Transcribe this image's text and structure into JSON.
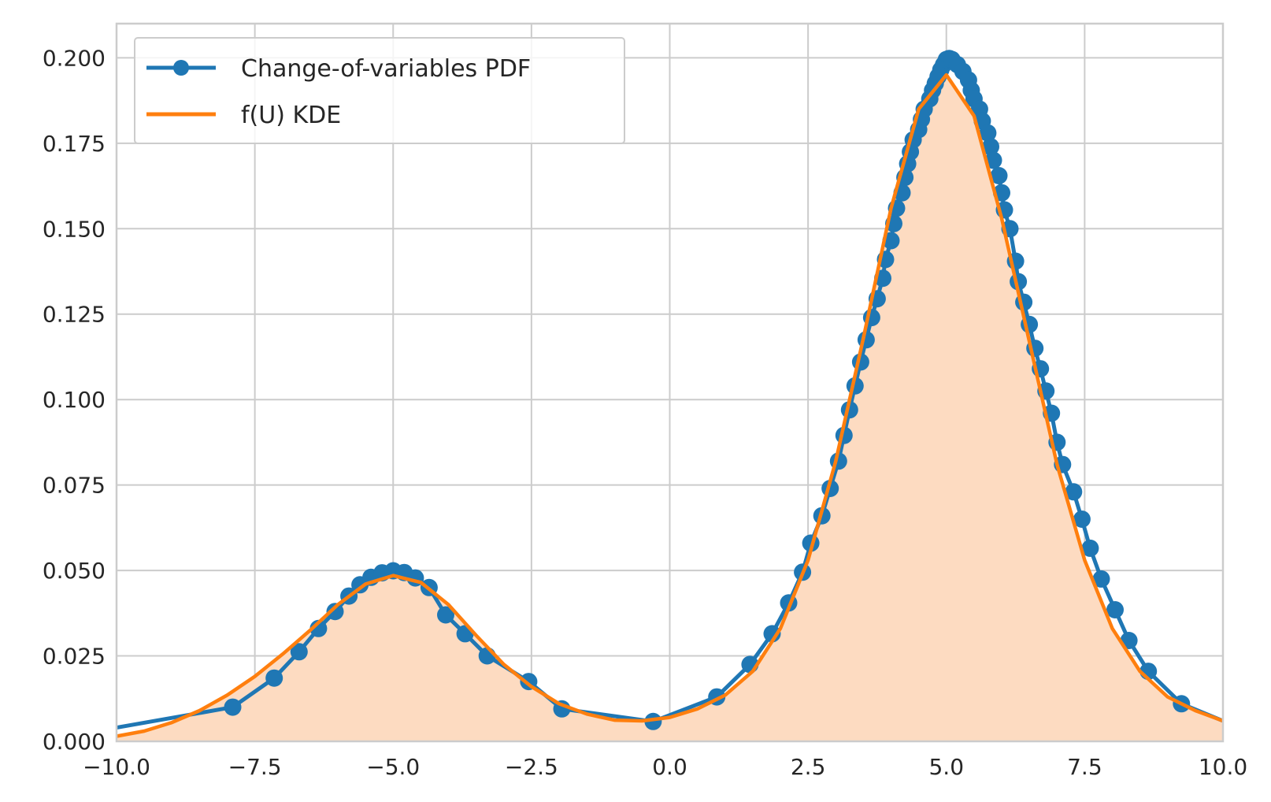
{
  "chart_data": {
    "type": "line",
    "title": "",
    "xlabel": "",
    "ylabel": "",
    "xlim": [
      -10.0,
      10.0
    ],
    "ylim": [
      0.0,
      0.21
    ],
    "grid": true,
    "legend_position": "top-left",
    "x_ticks": [
      "−10.0",
      "−7.5",
      "−5.0",
      "−2.5",
      "0.0",
      "2.5",
      "5.0",
      "7.5",
      "10.0"
    ],
    "y_ticks": [
      "0.000",
      "0.025",
      "0.050",
      "0.075",
      "0.100",
      "0.125",
      "0.150",
      "0.175",
      "0.200"
    ],
    "x_tick_values": [
      -10,
      -7.5,
      -5,
      -2.5,
      0,
      2.5,
      5,
      7.5,
      10
    ],
    "y_tick_values": [
      0,
      0.025,
      0.05,
      0.075,
      0.1,
      0.125,
      0.15,
      0.175,
      0.2
    ],
    "series": [
      {
        "name": "Change-of-variables PDF",
        "color": "#1f77b4",
        "marker": "circle",
        "points": [
          [
            -10.0,
            0.004
          ],
          [
            -7.9,
            0.01
          ],
          [
            -7.15,
            0.0185
          ],
          [
            -6.7,
            0.0262
          ],
          [
            -6.35,
            0.033
          ],
          [
            -6.05,
            0.038
          ],
          [
            -5.8,
            0.0425
          ],
          [
            -5.6,
            0.0458
          ],
          [
            -5.4,
            0.048
          ],
          [
            -5.2,
            0.0493
          ],
          [
            -5.0,
            0.0499
          ],
          [
            -4.8,
            0.0494
          ],
          [
            -4.6,
            0.0478
          ],
          [
            -4.35,
            0.045
          ],
          [
            -4.05,
            0.037
          ],
          [
            -3.7,
            0.0315
          ],
          [
            -3.3,
            0.025
          ],
          [
            -2.55,
            0.0175
          ],
          [
            -1.95,
            0.0095
          ],
          [
            -0.3,
            0.0058
          ],
          [
            0.85,
            0.013
          ],
          [
            1.45,
            0.0225
          ],
          [
            1.85,
            0.0315
          ],
          [
            2.15,
            0.0405
          ],
          [
            2.4,
            0.0495
          ],
          [
            2.55,
            0.058
          ],
          [
            2.75,
            0.066
          ],
          [
            2.9,
            0.074
          ],
          [
            3.05,
            0.082
          ],
          [
            3.15,
            0.0895
          ],
          [
            3.25,
            0.097
          ],
          [
            3.35,
            0.104
          ],
          [
            3.45,
            0.111
          ],
          [
            3.55,
            0.1175
          ],
          [
            3.65,
            0.124
          ],
          [
            3.75,
            0.1295
          ],
          [
            3.85,
            0.1355
          ],
          [
            3.9,
            0.141
          ],
          [
            4.0,
            0.1465
          ],
          [
            4.05,
            0.1515
          ],
          [
            4.1,
            0.156
          ],
          [
            4.2,
            0.1605
          ],
          [
            4.25,
            0.165
          ],
          [
            4.3,
            0.169
          ],
          [
            4.35,
            0.1725
          ],
          [
            4.4,
            0.176
          ],
          [
            4.5,
            0.179
          ],
          [
            4.55,
            0.182
          ],
          [
            4.6,
            0.185
          ],
          [
            4.7,
            0.188
          ],
          [
            4.75,
            0.1905
          ],
          [
            4.8,
            0.1925
          ],
          [
            4.85,
            0.1945
          ],
          [
            4.9,
            0.1965
          ],
          [
            4.95,
            0.198
          ],
          [
            5.0,
            0.1995
          ],
          [
            5.05,
            0.1998
          ],
          [
            5.1,
            0.1995
          ],
          [
            5.2,
            0.198
          ],
          [
            5.3,
            0.196
          ],
          [
            5.4,
            0.1935
          ],
          [
            5.45,
            0.1905
          ],
          [
            5.5,
            0.188
          ],
          [
            5.6,
            0.185
          ],
          [
            5.65,
            0.1815
          ],
          [
            5.75,
            0.178
          ],
          [
            5.8,
            0.174
          ],
          [
            5.85,
            0.17
          ],
          [
            5.95,
            0.1655
          ],
          [
            6.0,
            0.1605
          ],
          [
            6.05,
            0.1555
          ],
          [
            6.15,
            0.15
          ],
          [
            6.25,
            0.1405
          ],
          [
            6.3,
            0.1345
          ],
          [
            6.4,
            0.1285
          ],
          [
            6.5,
            0.122
          ],
          [
            6.6,
            0.115
          ],
          [
            6.7,
            0.109
          ],
          [
            6.8,
            0.1025
          ],
          [
            6.9,
            0.096
          ],
          [
            7.0,
            0.0875
          ],
          [
            7.1,
            0.081
          ],
          [
            7.3,
            0.073
          ],
          [
            7.45,
            0.065
          ],
          [
            7.6,
            0.0565
          ],
          [
            7.8,
            0.0475
          ],
          [
            8.05,
            0.0385
          ],
          [
            8.3,
            0.0295
          ],
          [
            8.65,
            0.0205
          ],
          [
            9.25,
            0.011
          ],
          [
            10.0,
            0.006
          ]
        ]
      },
      {
        "name": "f(U) KDE",
        "color": "#ff7f0e",
        "fill": "#fddbc1",
        "points": [
          [
            -10.0,
            0.0015
          ],
          [
            -9.5,
            0.003
          ],
          [
            -9.0,
            0.0055
          ],
          [
            -8.5,
            0.009
          ],
          [
            -8.0,
            0.0135
          ],
          [
            -7.5,
            0.019
          ],
          [
            -7.0,
            0.0255
          ],
          [
            -6.5,
            0.0325
          ],
          [
            -6.0,
            0.04
          ],
          [
            -5.5,
            0.046
          ],
          [
            -5.0,
            0.0485
          ],
          [
            -4.5,
            0.0465
          ],
          [
            -4.0,
            0.04
          ],
          [
            -3.5,
            0.031
          ],
          [
            -3.0,
            0.0225
          ],
          [
            -2.5,
            0.016
          ],
          [
            -2.0,
            0.011
          ],
          [
            -1.5,
            0.008
          ],
          [
            -1.0,
            0.0062
          ],
          [
            -0.5,
            0.006
          ],
          [
            0.0,
            0.007
          ],
          [
            0.5,
            0.0095
          ],
          [
            1.0,
            0.0135
          ],
          [
            1.5,
            0.0205
          ],
          [
            2.0,
            0.033
          ],
          [
            2.5,
            0.053
          ],
          [
            3.0,
            0.082
          ],
          [
            3.5,
            0.118
          ],
          [
            4.0,
            0.156
          ],
          [
            4.5,
            0.185
          ],
          [
            5.0,
            0.195
          ],
          [
            5.5,
            0.183
          ],
          [
            6.0,
            0.153
          ],
          [
            6.5,
            0.117
          ],
          [
            7.0,
            0.081
          ],
          [
            7.5,
            0.053
          ],
          [
            8.0,
            0.033
          ],
          [
            8.5,
            0.0205
          ],
          [
            9.0,
            0.013
          ],
          [
            9.5,
            0.009
          ],
          [
            10.0,
            0.006
          ]
        ]
      }
    ]
  }
}
